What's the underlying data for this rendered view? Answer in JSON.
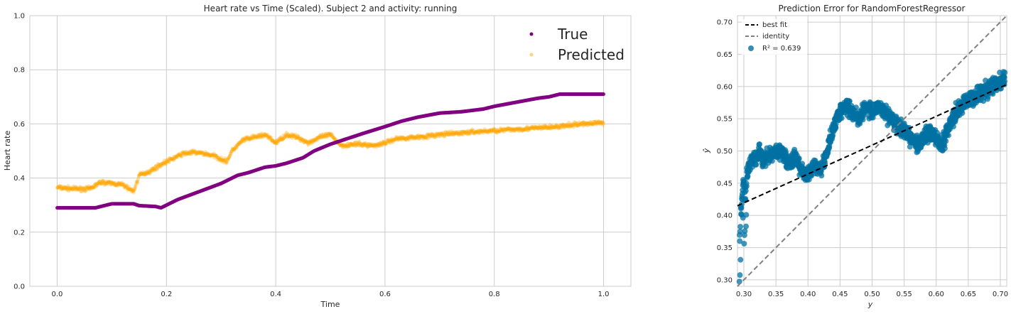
{
  "colors": {
    "true_series": "#800080",
    "predicted_series": "#ffa500",
    "scatter": "#0072a3",
    "grid": "#cccccc",
    "best_fit": "#000000",
    "identity": "#808080"
  },
  "chart_data": [
    {
      "type": "scatter",
      "title": "Heart rate vs Time (Scaled). Subject 2 and activity: running",
      "xlabel": "Time",
      "ylabel": "Heart rate",
      "xlim": [
        -0.05,
        1.05
      ],
      "ylim": [
        0.0,
        1.0
      ],
      "xticks": [
        0.0,
        0.2,
        0.4,
        0.6,
        0.8,
        1.0
      ],
      "xtick_labels": [
        "0.0",
        "0.2",
        "0.4",
        "0.6",
        "0.8",
        "1.0"
      ],
      "yticks": [
        0.0,
        0.2,
        0.4,
        0.6,
        0.8,
        1.0
      ],
      "ytick_labels": [
        "0.0",
        "0.2",
        "0.4",
        "0.6",
        "0.8",
        "1.0"
      ],
      "grid": true,
      "legend_position": "top-right",
      "series": [
        {
          "name": "True",
          "color": "#800080",
          "x": [
            0.0,
            0.04,
            0.07,
            0.09,
            0.1,
            0.14,
            0.15,
            0.18,
            0.19,
            0.2,
            0.22,
            0.26,
            0.3,
            0.33,
            0.35,
            0.38,
            0.4,
            0.42,
            0.45,
            0.47,
            0.5,
            0.53,
            0.56,
            0.6,
            0.63,
            0.66,
            0.7,
            0.74,
            0.78,
            0.8,
            0.84,
            0.88,
            0.9,
            0.92,
            0.96,
            1.0
          ],
          "y": [
            0.29,
            0.29,
            0.29,
            0.3,
            0.305,
            0.305,
            0.298,
            0.295,
            0.29,
            0.3,
            0.32,
            0.35,
            0.38,
            0.41,
            0.42,
            0.44,
            0.445,
            0.455,
            0.475,
            0.5,
            0.525,
            0.545,
            0.565,
            0.59,
            0.61,
            0.625,
            0.64,
            0.645,
            0.655,
            0.665,
            0.68,
            0.695,
            0.7,
            0.71,
            0.71,
            0.71
          ]
        },
        {
          "name": "Predicted",
          "color": "#ffa500",
          "x": [
            0.0,
            0.03,
            0.06,
            0.08,
            0.1,
            0.12,
            0.14,
            0.15,
            0.17,
            0.19,
            0.21,
            0.23,
            0.25,
            0.27,
            0.29,
            0.31,
            0.32,
            0.34,
            0.36,
            0.38,
            0.4,
            0.42,
            0.44,
            0.46,
            0.48,
            0.5,
            0.52,
            0.55,
            0.58,
            0.6,
            0.62,
            0.65,
            0.68,
            0.7,
            0.73,
            0.76,
            0.8,
            0.84,
            0.88,
            0.92,
            0.96,
            1.0
          ],
          "y": [
            0.365,
            0.36,
            0.36,
            0.385,
            0.38,
            0.375,
            0.35,
            0.41,
            0.425,
            0.45,
            0.47,
            0.49,
            0.495,
            0.49,
            0.48,
            0.46,
            0.5,
            0.54,
            0.55,
            0.56,
            0.53,
            0.56,
            0.55,
            0.53,
            0.55,
            0.56,
            0.52,
            0.525,
            0.52,
            0.53,
            0.545,
            0.55,
            0.555,
            0.56,
            0.565,
            0.57,
            0.575,
            0.58,
            0.585,
            0.59,
            0.6,
            0.605
          ]
        }
      ]
    },
    {
      "type": "scatter",
      "title": "Prediction Error for RandomForestRegressor",
      "xlabel": "y",
      "ylabel": "ŷ",
      "xlim": [
        0.29,
        0.71
      ],
      "ylim": [
        0.29,
        0.71
      ],
      "xticks": [
        0.3,
        0.35,
        0.4,
        0.45,
        0.5,
        0.55,
        0.6,
        0.65,
        0.7
      ],
      "xtick_labels": [
        "0.30",
        "0.35",
        "0.40",
        "0.45",
        "0.50",
        "0.55",
        "0.60",
        "0.65",
        "0.70"
      ],
      "yticks": [
        0.3,
        0.35,
        0.4,
        0.45,
        0.5,
        0.55,
        0.6,
        0.65,
        0.7
      ],
      "ytick_labels": [
        "0.30",
        "0.35",
        "0.40",
        "0.45",
        "0.50",
        "0.55",
        "0.60",
        "0.65",
        "0.70"
      ],
      "grid": true,
      "legend_position": "top-left",
      "legend": [
        {
          "label": "best fit",
          "style": "dashed",
          "color": "#000000"
        },
        {
          "label": "identity",
          "style": "dashed",
          "color": "#808080"
        },
        {
          "label": "R² = 0.639",
          "style": "marker",
          "color": "#0072a3"
        }
      ],
      "best_fit": {
        "x": [
          0.29,
          0.71
        ],
        "y": [
          0.415,
          0.603
        ]
      },
      "identity": {
        "x": [
          0.29,
          0.71
        ],
        "y": [
          0.29,
          0.71
        ]
      },
      "r2": 0.639,
      "series": [
        {
          "name": "R² = 0.639",
          "color": "#0072a3",
          "x": [
            0.293,
            0.295,
            0.298,
            0.3,
            0.302,
            0.305,
            0.31,
            0.315,
            0.32,
            0.325,
            0.33,
            0.335,
            0.34,
            0.35,
            0.36,
            0.37,
            0.38,
            0.39,
            0.4,
            0.41,
            0.42,
            0.43,
            0.44,
            0.45,
            0.46,
            0.47,
            0.48,
            0.49,
            0.5,
            0.51,
            0.52,
            0.53,
            0.54,
            0.55,
            0.56,
            0.57,
            0.58,
            0.59,
            0.6,
            0.61,
            0.62,
            0.63,
            0.64,
            0.65,
            0.66,
            0.67,
            0.68,
            0.69,
            0.7,
            0.71
          ],
          "y": [
            0.36,
            0.4,
            0.44,
            0.45,
            0.42,
            0.47,
            0.48,
            0.49,
            0.49,
            0.5,
            0.48,
            0.49,
            0.49,
            0.5,
            0.5,
            0.48,
            0.49,
            0.47,
            0.46,
            0.48,
            0.47,
            0.5,
            0.54,
            0.56,
            0.57,
            0.56,
            0.55,
            0.57,
            0.56,
            0.57,
            0.56,
            0.55,
            0.54,
            0.53,
            0.52,
            0.51,
            0.52,
            0.53,
            0.52,
            0.51,
            0.54,
            0.56,
            0.57,
            0.58,
            0.585,
            0.59,
            0.595,
            0.6,
            0.61,
            0.61
          ]
        }
      ]
    }
  ]
}
